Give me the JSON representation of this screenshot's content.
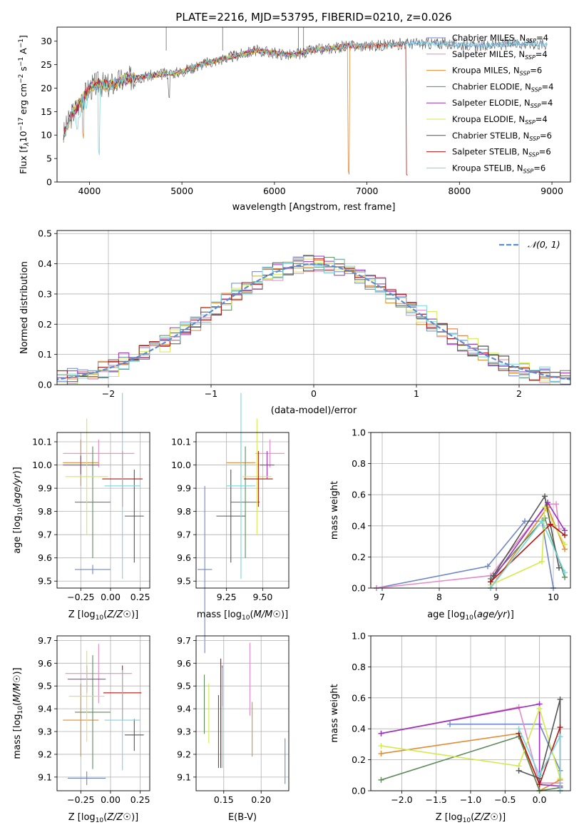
{
  "figure": {
    "title": "PLATE=2216, MJD=53795, FIBERID=0210, z=0.026"
  },
  "colors": {
    "Chabrier MILES": "#6f86c8",
    "Salpeter MILES": "#e48ac4",
    "Kroupa MILES": "#e28b31",
    "Chabrier ELODIE": "#5e8a5d",
    "Salpeter ELODIE": "#9a2fc0",
    "Kroupa ELODIE": "#d4ea4c",
    "Chabrier STELIB": "#555555",
    "Salpeter STELIB": "#b51414",
    "Kroupa STELIB": "#78d6dc",
    "gauss": "#5b8bd0"
  },
  "chart_data": [
    {
      "id": "spectrum",
      "type": "line",
      "xlabel": "wavelength [Angstrom, rest frame]",
      "ylabel": "Flux [f",
      "ylabel_parts": [
        "Flux [f",
        "λ",
        "10",
        "−17",
        " erg cm",
        "−2",
        " s",
        "−1",
        " A",
        "−1",
        "]"
      ],
      "xlim": [
        3650,
        9200
      ],
      "ylim": [
        0,
        33
      ],
      "xticks": [
        4000,
        5000,
        6000,
        7000,
        8000,
        9000
      ],
      "yticks": [
        0,
        5,
        10,
        15,
        20,
        25,
        30
      ],
      "legend_position": "upper right",
      "legend": [
        {
          "model": "Chabrier MILES",
          "nssp": "4"
        },
        {
          "model": "Salpeter MILES",
          "nssp": "4"
        },
        {
          "model": "Kroupa MILES",
          "nssp": "6"
        },
        {
          "model": "Chabrier ELODIE",
          "nssp": "4"
        },
        {
          "model": "Salpeter ELODIE",
          "nssp": "4"
        },
        {
          "model": "Kroupa ELODIE",
          "nssp": "4"
        },
        {
          "model": "Chabrier STELIB",
          "nssp": "6"
        },
        {
          "model": "Salpeter STELIB",
          "nssp": "6"
        },
        {
          "model": "Kroupa STELIB",
          "nssp": "6"
        }
      ],
      "continuum": {
        "x": [
          3720,
          3800,
          3900,
          4000,
          4100,
          4200,
          4400,
          4600,
          4800,
          5000,
          5200,
          5500,
          5800,
          6000,
          6200,
          6400,
          6600,
          6800,
          7000,
          7200,
          7400,
          7600,
          7800,
          8000,
          8200,
          8400,
          8600,
          8800,
          8950
        ],
        "y": [
          10,
          14,
          17,
          20,
          21,
          20.5,
          22,
          22.5,
          23,
          23.5,
          25,
          26.5,
          28,
          27.5,
          27,
          28,
          28.5,
          29,
          29,
          29.2,
          29.5,
          29.5,
          29.5,
          29.3,
          29,
          29.2,
          29.5,
          29.5,
          29.3
        ]
      },
      "features": [
        {
          "x": 3933,
          "depth": 8,
          "model": "Kroupa MILES"
        },
        {
          "x": 4102,
          "depth": 15,
          "model": "Kroupa STELIB"
        },
        {
          "x": 4861,
          "depth": 4,
          "model": "Chabrier STELIB"
        },
        {
          "x": 6800,
          "depth": 27,
          "model": "Kroupa MILES"
        },
        {
          "x": 7430,
          "depth": 28,
          "model": "Salpeter STELIB"
        }
      ]
    },
    {
      "id": "residual-distribution",
      "type": "bar",
      "xlabel": "(data-model)/error",
      "ylabel": "Normed distribution",
      "xlim": [
        -2.5,
        2.5
      ],
      "ylim": [
        0,
        0.51
      ],
      "xticks": [
        -2,
        -1,
        0,
        1,
        2
      ],
      "yticks": [
        0.0,
        0.1,
        0.2,
        0.3,
        0.4,
        0.5
      ],
      "bin_width": 0.1,
      "legend": "𝒩(0, 1)",
      "legend_position": "upper right",
      "gaussian": {
        "mu": 0,
        "sigma": 1
      },
      "series": [
        {
          "name": "Chabrier MILES",
          "offset": 0.02,
          "seed": 1
        },
        {
          "name": "Salpeter MILES",
          "offset": -0.02,
          "seed": 2
        },
        {
          "name": "Kroupa MILES",
          "offset": 0.01,
          "seed": 3
        },
        {
          "name": "Chabrier ELODIE",
          "offset": -0.015,
          "seed": 4
        },
        {
          "name": "Salpeter ELODIE",
          "offset": 0.03,
          "seed": 5
        },
        {
          "name": "Kroupa ELODIE",
          "offset": -0.03,
          "seed": 6
        },
        {
          "name": "Chabrier STELIB",
          "offset": 0.0,
          "seed": 7
        },
        {
          "name": "Salpeter STELIB",
          "offset": 0.025,
          "seed": 8
        },
        {
          "name": "Kroupa STELIB",
          "offset": -0.01,
          "seed": 9
        }
      ]
    },
    {
      "id": "age-vs-Z",
      "type": "scatter",
      "xlabel": "Z [log10(Z/Z☉)]",
      "ylabel": "age [log10(age/yr)]",
      "xlim": [
        -0.45,
        0.33
      ],
      "ylim": [
        9.47,
        10.14
      ],
      "xticks": [
        -0.25,
        0.0,
        0.25
      ],
      "xtick_labels": [
        "−0.25",
        "0.00",
        "0.25"
      ],
      "yticks": [
        9.5,
        9.6,
        9.7,
        9.8,
        9.9,
        10.0,
        10.1
      ],
      "points": [
        {
          "model": "Chabrier MILES",
          "x": -0.15,
          "y": 9.55,
          "xerr": 0.15,
          "yerr": 0.02
        },
        {
          "model": "Salpeter MILES",
          "x": -0.1,
          "y": 10.05,
          "xerr": 0.3,
          "yerr": 0.06
        },
        {
          "model": "Kroupa MILES",
          "x": -0.25,
          "y": 10.01,
          "xerr": 0.15,
          "yerr": 0.1
        },
        {
          "model": "Chabrier ELODIE",
          "x": -0.15,
          "y": 9.84,
          "xerr": 0.15,
          "yerr": 0.24
        },
        {
          "model": "Salpeter ELODIE",
          "x": -0.25,
          "y": 10.0,
          "xerr": 0.15,
          "yerr": 0.04
        },
        {
          "model": "Kroupa ELODIE",
          "x": -0.2,
          "y": 9.95,
          "xerr": 0.18,
          "yerr": 0.25
        },
        {
          "model": "Chabrier STELIB",
          "x": 0.2,
          "y": 9.78,
          "xerr": 0.08,
          "yerr": 0.2
        },
        {
          "model": "Salpeter STELIB",
          "x": 0.1,
          "y": 9.94,
          "xerr": 0.17,
          "yerr": 0.12
        },
        {
          "model": "Kroupa STELIB",
          "x": 0.1,
          "y": 9.91,
          "xerr": 0.15,
          "yerr": 0.4
        }
      ]
    },
    {
      "id": "age-vs-mass",
      "type": "scatter",
      "xlabel": "mass [log10(M/M☉)]",
      "ylabel": "",
      "xlim": [
        9.04,
        9.68
      ],
      "ylim": [
        9.47,
        10.14
      ],
      "xticks": [
        9.25,
        9.5
      ],
      "xtick_labels": [
        "9.25",
        "9.50"
      ],
      "yticks": [
        9.5,
        9.6,
        9.7,
        9.8,
        9.9,
        10.0,
        10.1
      ],
      "points": [
        {
          "model": "Chabrier MILES",
          "x": 9.1,
          "y": 9.55,
          "xerr": 0.05,
          "yerr": 0.36
        },
        {
          "model": "Salpeter MILES",
          "x": 9.55,
          "y": 10.05,
          "xerr": 0.1,
          "yerr": 0.06
        },
        {
          "model": "Kroupa MILES",
          "x": 9.35,
          "y": 10.01,
          "xerr": 0.1,
          "yerr": 0.12
        },
        {
          "model": "Chabrier ELODIE",
          "x": 9.38,
          "y": 9.84,
          "xerr": 0.1,
          "yerr": 0.24
        },
        {
          "model": "Salpeter ELODIE",
          "x": 9.53,
          "y": 10.0,
          "xerr": 0.05,
          "yerr": 0.06
        },
        {
          "model": "Kroupa ELODIE",
          "x": 9.46,
          "y": 9.95,
          "xerr": 0.1,
          "yerr": 0.25
        },
        {
          "model": "Chabrier STELIB",
          "x": 9.28,
          "y": 9.78,
          "xerr": 0.1,
          "yerr": 0.2
        },
        {
          "model": "Salpeter STELIB",
          "x": 9.47,
          "y": 9.94,
          "xerr": 0.1,
          "yerr": 0.12
        },
        {
          "model": "Kroupa STELIB",
          "x": 9.35,
          "y": 9.91,
          "xerr": 0.1,
          "yerr": 0.4
        }
      ]
    },
    {
      "id": "weight-vs-age",
      "type": "line",
      "xlabel": "age [log10(age/yr)]",
      "ylabel": "mass weight",
      "xlim": [
        6.8,
        10.3
      ],
      "ylim": [
        0,
        1.0
      ],
      "xticks": [
        7,
        8,
        9,
        10
      ],
      "yticks": [
        0.0,
        0.2,
        0.4,
        0.6,
        0.8,
        1.0
      ],
      "series": [
        {
          "name": "Chabrier MILES",
          "points": [
            [
              6.9,
              0.0
            ],
            [
              8.85,
              0.14
            ],
            [
              9.5,
              0.43
            ],
            [
              9.8,
              0.43
            ],
            [
              10.0,
              0.0
            ]
          ]
        },
        {
          "name": "Salpeter MILES",
          "points": [
            [
              6.9,
              0.0
            ],
            [
              8.9,
              0.08
            ],
            [
              9.9,
              0.54
            ],
            [
              10.05,
              0.54
            ],
            [
              10.1,
              0.38
            ]
          ]
        },
        {
          "name": "Kroupa MILES",
          "points": [
            [
              8.9,
              0.0
            ],
            [
              9.9,
              0.52
            ],
            [
              10.2,
              0.25
            ]
          ]
        },
        {
          "name": "Chabrier ELODIE",
          "points": [
            [
              8.9,
              0.06
            ],
            [
              9.85,
              0.45
            ],
            [
              10.2,
              0.07
            ]
          ]
        },
        {
          "name": "Salpeter ELODIE",
          "points": [
            [
              8.9,
              0.04
            ],
            [
              9.9,
              0.55
            ],
            [
              10.2,
              0.37
            ]
          ]
        },
        {
          "name": "Kroupa ELODIE",
          "points": [
            [
              8.9,
              0.02
            ],
            [
              9.8,
              0.17
            ],
            [
              9.85,
              0.52
            ],
            [
              10.2,
              0.28
            ]
          ]
        },
        {
          "name": "Chabrier STELIB",
          "points": [
            [
              8.95,
              0.08
            ],
            [
              9.85,
              0.59
            ],
            [
              10.1,
              0.13
            ]
          ]
        },
        {
          "name": "Salpeter STELIB",
          "points": [
            [
              8.9,
              0.04
            ],
            [
              9.95,
              0.41
            ],
            [
              10.2,
              0.34
            ]
          ]
        },
        {
          "name": "Kroupa STELIB",
          "points": [
            [
              8.9,
              0.0
            ],
            [
              9.8,
              0.43
            ],
            [
              10.2,
              0.1
            ]
          ]
        }
      ]
    },
    {
      "id": "mass-vs-Z",
      "type": "scatter",
      "xlabel": "Z [log10(Z/Z☉)]",
      "ylabel": "mass [log10(M/M☉)]",
      "xlim": [
        -0.45,
        0.33
      ],
      "ylim": [
        9.04,
        9.72
      ],
      "xticks": [
        -0.25,
        0.0,
        0.25
      ],
      "xtick_labels": [
        "−0.25",
        "0.00",
        "0.25"
      ],
      "yticks": [
        9.1,
        9.2,
        9.3,
        9.4,
        9.5,
        9.6,
        9.7
      ],
      "points": [
        {
          "model": "Chabrier MILES",
          "x": -0.2,
          "y": 9.095,
          "xerr": 0.16,
          "yerr": 0.03
        },
        {
          "model": "Salpeter MILES",
          "x": -0.1,
          "y": 9.555,
          "xerr": 0.28,
          "yerr": 0.13
        },
        {
          "model": "Kroupa MILES",
          "x": -0.25,
          "y": 9.35,
          "xerr": 0.15,
          "yerr": 0.16
        },
        {
          "model": "Chabrier ELODIE",
          "x": -0.15,
          "y": 9.385,
          "xerr": 0.15,
          "yerr": 0.25
        },
        {
          "model": "Salpeter ELODIE",
          "x": -0.2,
          "y": 9.53,
          "xerr": 0.16,
          "yerr": 0.06
        },
        {
          "model": "Kroupa ELODIE",
          "x": -0.2,
          "y": 9.455,
          "xerr": 0.15,
          "yerr": 0.2
        },
        {
          "model": "Chabrier STELIB",
          "x": 0.2,
          "y": 9.285,
          "xerr": 0.08,
          "yerr": 0.07
        },
        {
          "model": "Salpeter STELIB",
          "x": 0.1,
          "y": 9.47,
          "xerr": 0.16,
          "yerr": 0.12
        },
        {
          "model": "Kroupa STELIB",
          "x": 0.1,
          "y": 9.35,
          "xerr": 0.15,
          "yerr": 0.22
        }
      ]
    },
    {
      "id": "mass-vs-ebv",
      "type": "scatter",
      "xlabel": "E(B-V)",
      "ylabel": "",
      "xlim": [
        0.113,
        0.237
      ],
      "ylim": [
        9.04,
        9.72
      ],
      "xticks": [
        0.15,
        0.2
      ],
      "xtick_labels": [
        "0.15",
        "0.20"
      ],
      "yticks": [
        9.1,
        9.2,
        9.3,
        9.4,
        9.5,
        9.6,
        9.7
      ],
      "points": [
        {
          "model": "Chabrier MILES",
          "x": 0.232,
          "y": 9.17,
          "yerr": 0.1
        },
        {
          "model": "Salpeter MILES",
          "x": 0.185,
          "y": 9.53,
          "yerr": 0.16
        },
        {
          "model": "Kroupa MILES",
          "x": 0.188,
          "y": 9.31,
          "yerr": 0.12
        },
        {
          "model": "Chabrier ELODIE",
          "x": 0.124,
          "y": 9.42,
          "yerr": 0.13
        },
        {
          "model": "Salpeter ELODIE",
          "x": 0.148,
          "y": 9.5,
          "yerr": 0.09
        },
        {
          "model": "Kroupa ELODIE",
          "x": 0.13,
          "y": 9.38,
          "yerr": 0.13
        },
        {
          "model": "Chabrier STELIB",
          "x": 0.143,
          "y": 9.3,
          "yerr": 0.16
        },
        {
          "model": "Salpeter STELIB",
          "x": 0.146,
          "y": 9.38,
          "yerr": 0.24
        },
        {
          "model": "Kroupa STELIB",
          "x": 0.148,
          "y": 9.36,
          "yerr": 0.22
        }
      ]
    },
    {
      "id": "weight-vs-Z",
      "type": "line",
      "xlabel": "Z [log10(Z/Z☉)]",
      "ylabel": "mass weight",
      "xlim": [
        -2.45,
        0.45
      ],
      "ylim": [
        0,
        1.0
      ],
      "xticks": [
        -2.0,
        -1.5,
        -1.0,
        -0.5,
        0.0
      ],
      "xtick_labels": [
        "−2.0",
        "−1.5",
        "−1.0",
        "−0.5",
        "0.0"
      ],
      "yticks": [
        0.0,
        0.2,
        0.4,
        0.6,
        0.8,
        1.0
      ],
      "series": [
        {
          "name": "Chabrier MILES",
          "points": [
            [
              -1.3,
              0.43
            ],
            [
              0.0,
              0.43
            ],
            [
              0.3,
              0.13
            ]
          ]
        },
        {
          "name": "Salpeter MILES",
          "points": [
            [
              -2.3,
              0.37
            ],
            [
              -0.3,
              0.54
            ],
            [
              0.0,
              0.05
            ],
            [
              0.3,
              0.05
            ]
          ]
        },
        {
          "name": "Kroupa MILES",
          "points": [
            [
              -2.3,
              0.24
            ],
            [
              -0.3,
              0.37
            ],
            [
              0.0,
              0.0
            ],
            [
              0.3,
              0.07
            ]
          ]
        },
        {
          "name": "Chabrier ELODIE",
          "points": [
            [
              -2.3,
              0.07
            ],
            [
              -0.3,
              0.35
            ],
            [
              0.0,
              0.0
            ],
            [
              0.3,
              0.02
            ]
          ]
        },
        {
          "name": "Salpeter ELODIE",
          "points": [
            [
              -2.3,
              0.37
            ],
            [
              0.0,
              0.56
            ],
            [
              0.0,
              0.04
            ],
            [
              0.3,
              0.03
            ]
          ]
        },
        {
          "name": "Kroupa ELODIE",
          "points": [
            [
              -2.3,
              0.29
            ],
            [
              -0.3,
              0.16
            ],
            [
              0.0,
              0.53
            ],
            [
              0.3,
              0.08
            ]
          ]
        },
        {
          "name": "Chabrier STELIB",
          "points": [
            [
              -0.3,
              0.13
            ],
            [
              0.0,
              0.08
            ],
            [
              0.3,
              0.59
            ],
            [
              0.3,
              0.0
            ]
          ]
        },
        {
          "name": "Salpeter STELIB",
          "points": [
            [
              -0.3,
              0.37
            ],
            [
              0.0,
              0.04
            ],
            [
              0.3,
              0.41
            ]
          ]
        },
        {
          "name": "Kroupa STELIB",
          "points": [
            [
              -0.3,
              0.4
            ],
            [
              0.0,
              0.1
            ],
            [
              0.3,
              0.35
            ],
            [
              0.3,
              0.0
            ]
          ]
        }
      ]
    }
  ]
}
